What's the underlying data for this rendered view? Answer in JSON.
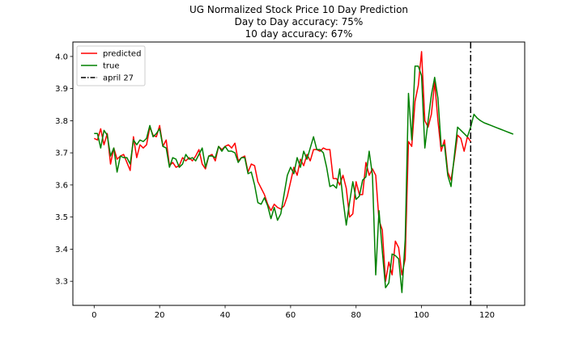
{
  "chart_data": {
    "type": "line",
    "title_lines": [
      "UG Normalized Stock Price 10 Day Prediction",
      "Day to Day accuracy: 75%",
      "10 day accuracy: 67%"
    ],
    "xlabel": "",
    "ylabel": "",
    "xlim": [
      -6.5,
      131.5
    ],
    "ylim": [
      3.225,
      4.045
    ],
    "xticks": [
      0,
      20,
      40,
      60,
      80,
      100,
      120
    ],
    "yticks": [
      3.3,
      3.4,
      3.5,
      3.6,
      3.7,
      3.8,
      3.9,
      4.0
    ],
    "ytick_labels": [
      "3.3",
      "3.4",
      "3.5",
      "3.6",
      "3.7",
      "3.8",
      "3.9",
      "4.0"
    ],
    "xtick_labels": [
      "0",
      "20",
      "40",
      "60",
      "80",
      "100",
      "120"
    ],
    "legend_position": "upper-left",
    "grid": false,
    "series": [
      {
        "name": "predicted",
        "color": "#ff0000",
        "x_start": 0,
        "values": [
          3.745,
          3.74,
          3.775,
          3.725,
          3.76,
          3.665,
          3.715,
          3.68,
          3.69,
          3.695,
          3.67,
          3.645,
          3.75,
          3.685,
          3.725,
          3.715,
          3.725,
          3.78,
          3.755,
          3.75,
          3.785,
          3.72,
          3.74,
          3.66,
          3.67,
          3.655,
          3.66,
          3.685,
          3.675,
          3.685,
          3.675,
          3.69,
          3.71,
          3.665,
          3.65,
          3.69,
          3.695,
          3.675,
          3.72,
          3.71,
          3.72,
          3.725,
          3.715,
          3.73,
          3.675,
          3.685,
          3.69,
          3.64,
          3.665,
          3.66,
          3.61,
          3.59,
          3.57,
          3.54,
          3.52,
          3.54,
          3.53,
          3.525,
          3.535,
          3.565,
          3.61,
          3.655,
          3.63,
          3.68,
          3.66,
          3.695,
          3.675,
          3.71,
          3.71,
          3.705,
          3.715,
          3.71,
          3.71,
          3.62,
          3.62,
          3.6,
          3.63,
          3.59,
          3.5,
          3.51,
          3.61,
          3.57,
          3.57,
          3.67,
          3.63,
          3.65,
          3.63,
          3.49,
          3.46,
          3.3,
          3.36,
          3.32,
          3.425,
          3.405,
          3.32,
          3.37,
          3.735,
          3.72,
          3.86,
          3.91,
          4.015,
          3.8,
          3.78,
          3.82,
          3.92,
          3.8,
          3.705,
          3.74,
          3.64,
          3.615,
          3.68,
          3.755,
          3.745,
          3.705,
          3.75,
          3.735
        ]
      },
      {
        "name": "true",
        "color": "#008000",
        "x_start": 0,
        "values": [
          3.76,
          3.76,
          3.715,
          3.77,
          3.755,
          3.69,
          3.715,
          3.64,
          3.69,
          3.685,
          3.685,
          3.665,
          3.74,
          3.725,
          3.74,
          3.735,
          3.745,
          3.785,
          3.75,
          3.76,
          3.775,
          3.72,
          3.715,
          3.655,
          3.685,
          3.68,
          3.655,
          3.665,
          3.695,
          3.68,
          3.685,
          3.675,
          3.695,
          3.715,
          3.655,
          3.69,
          3.69,
          3.685,
          3.72,
          3.705,
          3.72,
          3.705,
          3.705,
          3.7,
          3.67,
          3.685,
          3.685,
          3.635,
          3.64,
          3.6,
          3.545,
          3.54,
          3.56,
          3.535,
          3.495,
          3.53,
          3.49,
          3.51,
          3.57,
          3.63,
          3.655,
          3.635,
          3.685,
          3.655,
          3.705,
          3.68,
          3.715,
          3.75,
          3.71,
          3.71,
          3.7,
          3.655,
          3.595,
          3.6,
          3.59,
          3.65,
          3.555,
          3.475,
          3.545,
          3.61,
          3.555,
          3.565,
          3.615,
          3.625,
          3.705,
          3.63,
          3.32,
          3.52,
          3.395,
          3.28,
          3.295,
          3.385,
          3.38,
          3.37,
          3.265,
          3.43,
          3.885,
          3.74,
          3.97,
          3.97,
          3.94,
          3.715,
          3.8,
          3.88,
          3.935,
          3.87,
          3.72,
          3.725,
          3.63,
          3.595,
          3.69,
          3.78,
          3.77,
          3.76,
          3.75,
          3.78,
          3.82,
          3.808,
          3.8,
          3.794,
          3.79,
          3.786,
          3.782,
          3.778,
          3.774,
          3.77,
          3.766,
          3.762,
          3.758
        ]
      },
      {
        "name": "april 27",
        "color": "#000000",
        "style": "dashdot",
        "x": 115
      }
    ]
  }
}
